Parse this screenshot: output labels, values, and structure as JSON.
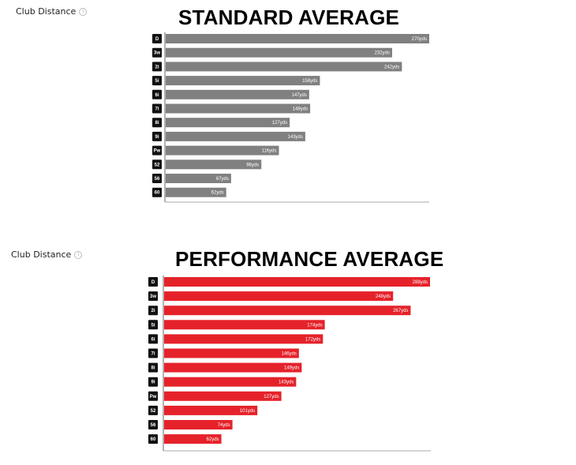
{
  "chart_data": [
    {
      "type": "bar",
      "widget_title": "Club Distance",
      "title": "STANDARD AVERAGE",
      "orientation": "horizontal",
      "categories": [
        "D",
        "3w",
        "2i",
        "5i",
        "6i",
        "7i",
        "8i",
        "9i",
        "Pw",
        "52",
        "56",
        "60"
      ],
      "values": [
        270,
        232,
        242,
        158,
        147,
        148,
        127,
        143,
        116,
        98,
        67,
        62
      ],
      "value_labels": [
        "270yds",
        "232yds",
        "242yds",
        "158yds",
        "147yds",
        "148yds",
        "127yds",
        "143yds",
        "116yds",
        "98yds",
        "67yds",
        "62yds"
      ],
      "unit": "yds",
      "xlim": [
        0,
        270
      ],
      "color": "#808080"
    },
    {
      "type": "bar",
      "widget_title": "Club Distance",
      "title": "PERFORMANCE AVERAGE",
      "orientation": "horizontal",
      "categories": [
        "D",
        "3w",
        "2i",
        "5i",
        "6i",
        "7i",
        "8i",
        "9i",
        "Pw",
        "52",
        "56",
        "60"
      ],
      "values": [
        288,
        248,
        267,
        174,
        172,
        146,
        149,
        143,
        127,
        101,
        74,
        62
      ],
      "value_labels": [
        "288yds",
        "248yds",
        "267yds",
        "174yds",
        "172yds",
        "146yds",
        "149yds",
        "143yds",
        "127yds",
        "101yds",
        "74yds",
        "62yds"
      ],
      "unit": "yds",
      "xlim": [
        0,
        288
      ],
      "color": "#e5222a"
    }
  ]
}
